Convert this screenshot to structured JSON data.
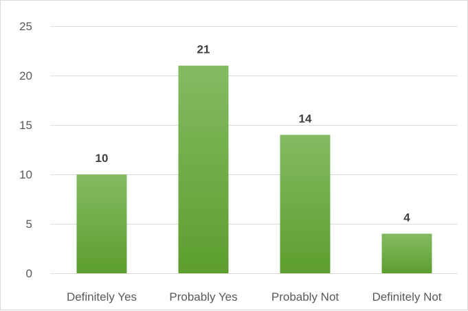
{
  "chart_data": {
    "type": "bar",
    "categories": [
      "Definitely Yes",
      "Probably Yes",
      "Probably Not",
      "Definitely Not"
    ],
    "values": [
      10,
      21,
      14,
      4
    ],
    "ylim": [
      0,
      25
    ],
    "yticks": [
      0,
      5,
      10,
      15,
      20,
      25
    ],
    "grid": true,
    "data_labels": true,
    "title": "",
    "xlabel": "",
    "ylabel": "",
    "colors": {
      "bar_top": "#84bb62",
      "bar_bottom": "#5c9e2e",
      "gridline": "#d9d9d9",
      "tick_text": "#595959",
      "data_label_text": "#404040"
    }
  }
}
